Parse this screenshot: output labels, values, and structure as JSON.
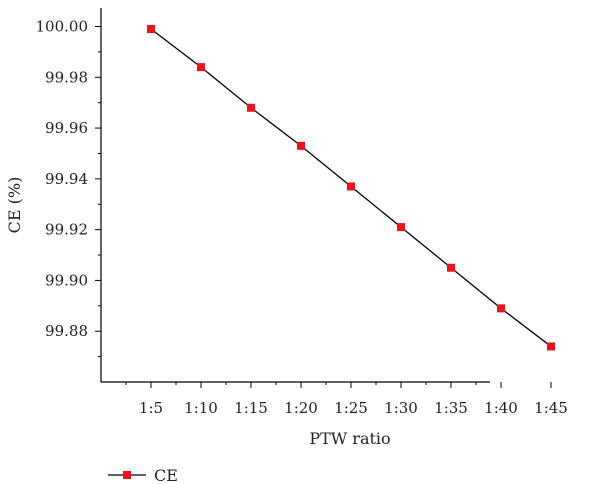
{
  "chart_data": {
    "type": "line",
    "title": "",
    "xlabel": "PTW ratio",
    "ylabel": "CE (%)",
    "categories": [
      "1:5",
      "1:10",
      "1:15",
      "1:20",
      "1:25",
      "1:30",
      "1:35",
      "1:40",
      "1:45"
    ],
    "series": [
      {
        "name": "CE",
        "values": [
          99.999,
          99.984,
          99.968,
          99.953,
          99.937,
          99.921,
          99.905,
          99.889,
          99.874
        ],
        "color": "#e8141b",
        "line_color": "#000000",
        "marker": "square"
      }
    ],
    "y_ticks": [
      "99.88",
      "99.90",
      "99.92",
      "99.94",
      "99.96",
      "99.98",
      "100.00"
    ],
    "ylim": [
      99.86,
      100.005
    ],
    "grid": false,
    "legend_position": "bottom-left"
  }
}
